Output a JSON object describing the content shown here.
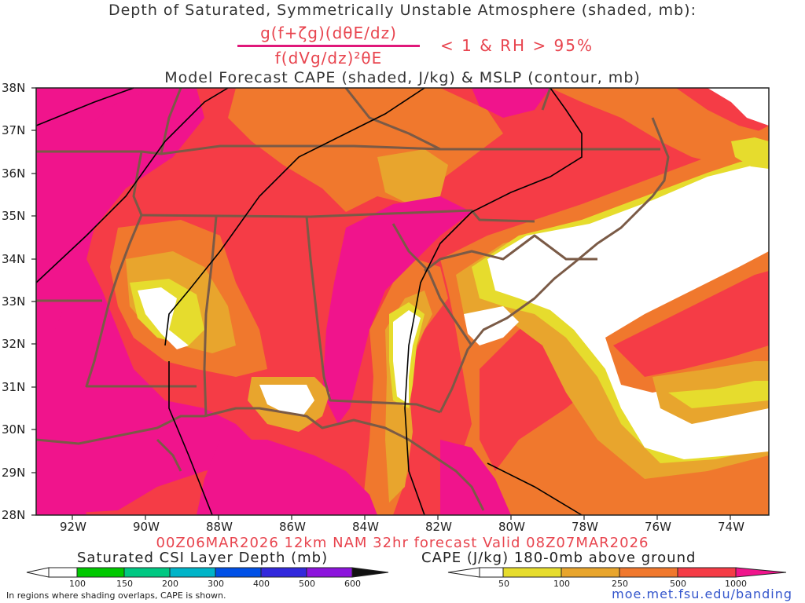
{
  "titles": {
    "line1": "Depth of Saturated, Symmetrically Unstable Atmosphere (shaded, mb):",
    "numerator": "g(f+ζg)(dθE/dz)",
    "denominator": "f(dVg/dz)²θE",
    "condition": "< 1 & RH > 95%",
    "line3": "Model Forecast CAPE (shaded, J/kg) & MSLP (contour, mb)",
    "valid": "00Z06MAR2026 12km NAM 32hr forecast Valid 08Z07MAR2026"
  },
  "map": {
    "lat_labels": [
      "38N",
      "37N",
      "36N",
      "35N",
      "34N",
      "33N",
      "32N",
      "31N",
      "30N",
      "29N",
      "28N"
    ],
    "lon_labels": [
      "92W",
      "90W",
      "88W",
      "86W",
      "84W",
      "82W",
      "80W",
      "78W",
      "76W",
      "74W"
    ],
    "colors": {
      "magenta": "#f0148c",
      "red": "#f53c46",
      "orange": "#f0782d",
      "amber": "#e8a52d",
      "yellow": "#e6dc2d",
      "border": "#7a5a46",
      "isobar": "#000000"
    }
  },
  "legend_csi": {
    "title": "Saturated CSI Layer Depth (mb)",
    "ticks": [
      "100",
      "150",
      "200",
      "300",
      "400",
      "500",
      "600"
    ],
    "colors": [
      "#00c800",
      "#00c882",
      "#00b4c8",
      "#0050e6",
      "#3228dc",
      "#8c14dc"
    ]
  },
  "legend_cape": {
    "title": "CAPE (J/kg) 180-0mb above ground",
    "ticks": [
      "50",
      "100",
      "250",
      "500",
      "1000"
    ],
    "colors": [
      "#e6dc2d",
      "#e8a52d",
      "#f0782d",
      "#f53c46"
    ]
  },
  "footer": {
    "note": "In regions where shading overlaps, CAPE is shown.",
    "url": "moe.met.fsu.edu/banding"
  }
}
